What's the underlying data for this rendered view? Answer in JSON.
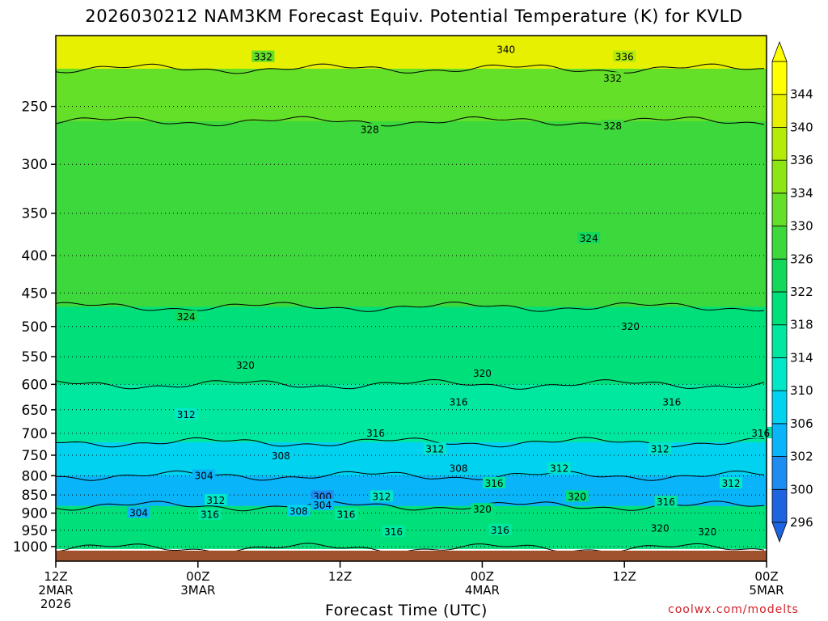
{
  "chart_data": {
    "type": "heatmap",
    "title": "2026030212 NAM3KM Forecast Equiv. Potential Temperature (K) for KVLD",
    "xlabel": "Forecast Time (UTC)",
    "ylabel": "",
    "y_scale": "log-pressure",
    "y_reversed": true,
    "y_ticks": [
      250,
      300,
      350,
      400,
      450,
      500,
      550,
      600,
      650,
      700,
      750,
      800,
      850,
      900,
      950,
      1000
    ],
    "ylim": [
      1013,
      200
    ],
    "x_ticks": [
      {
        "hours": 0,
        "lines": [
          "12Z",
          "2MAR",
          "2026"
        ]
      },
      {
        "hours": 12,
        "lines": [
          "00Z",
          "3MAR"
        ]
      },
      {
        "hours": 24,
        "lines": [
          "12Z"
        ]
      },
      {
        "hours": 36,
        "lines": [
          "00Z",
          "4MAR"
        ]
      },
      {
        "hours": 48,
        "lines": [
          "12Z"
        ]
      },
      {
        "hours": 60,
        "lines": [
          "00Z",
          "5MAR"
        ]
      }
    ],
    "xlim": [
      0,
      60
    ],
    "colorbar": {
      "levels": [
        296,
        300,
        302,
        306,
        310,
        314,
        318,
        322,
        326,
        330,
        334,
        336,
        340,
        344
      ],
      "labels": [
        "296",
        "300",
        "302",
        "306",
        "310",
        "314",
        "318",
        "322",
        "326",
        "330",
        "334",
        "336",
        "340",
        "344"
      ],
      "colors": [
        "#1e64e0",
        "#1e8cf0",
        "#0ab4f8",
        "#00d2f0",
        "#00e8c8",
        "#00e8a0",
        "#00e07a",
        "#14d85a",
        "#3cd83c",
        "#64e028",
        "#8ce614",
        "#b4ec0a",
        "#e6f000",
        "#ffff00"
      ]
    },
    "contour_interval": 4,
    "contour_levels_labeled": [
      {
        "value": 340,
        "text": "340",
        "hours": 38.0,
        "p": 209
      },
      {
        "value": 336,
        "text": "336",
        "hours": 48.0,
        "p": 214
      },
      {
        "value": 332,
        "text": "332",
        "hours": 17.5,
        "p": 214
      },
      {
        "value": 332,
        "text": "332",
        "hours": 47.0,
        "p": 229
      },
      {
        "value": 328,
        "text": "328",
        "hours": 26.5,
        "p": 269
      },
      {
        "value": 328,
        "text": "328",
        "hours": 47.0,
        "p": 266
      },
      {
        "value": 324,
        "text": "324",
        "hours": 45.0,
        "p": 379
      },
      {
        "value": 324,
        "text": "324",
        "hours": 11.0,
        "p": 485
      },
      {
        "value": 320,
        "text": "320",
        "hours": 48.5,
        "p": 500
      },
      {
        "value": 320,
        "text": "320",
        "hours": 16.0,
        "p": 565
      },
      {
        "value": 320,
        "text": "320",
        "hours": 36.0,
        "p": 580
      },
      {
        "value": 316,
        "text": "316",
        "hours": 34.0,
        "p": 635
      },
      {
        "value": 316,
        "text": "316",
        "hours": 52.0,
        "p": 635
      },
      {
        "value": 312,
        "text": "312",
        "hours": 11.0,
        "p": 660
      },
      {
        "value": 316,
        "text": "316",
        "hours": 27.0,
        "p": 700
      },
      {
        "value": 316,
        "text": "316",
        "hours": 59.5,
        "p": 700
      },
      {
        "value": 312,
        "text": "312",
        "hours": 32.0,
        "p": 736
      },
      {
        "value": 308,
        "text": "308",
        "hours": 19.0,
        "p": 752
      },
      {
        "value": 312,
        "text": "312",
        "hours": 51.0,
        "p": 736
      },
      {
        "value": 304,
        "text": "304",
        "hours": 12.5,
        "p": 800
      },
      {
        "value": 308,
        "text": "308",
        "hours": 34.0,
        "p": 782
      },
      {
        "value": 312,
        "text": "312",
        "hours": 42.5,
        "p": 782
      },
      {
        "value": 316,
        "text": "316",
        "hours": 37.0,
        "p": 820
      },
      {
        "value": 300,
        "text": "300",
        "hours": 22.5,
        "p": 855
      },
      {
        "value": 312,
        "text": "312",
        "hours": 27.5,
        "p": 855
      },
      {
        "value": 312,
        "text": "312",
        "hours": 13.5,
        "p": 865
      },
      {
        "value": 320,
        "text": "320",
        "hours": 44.0,
        "p": 855
      },
      {
        "value": 312,
        "text": "312",
        "hours": 57.0,
        "p": 820
      },
      {
        "value": 316,
        "text": "316",
        "hours": 51.5,
        "p": 870
      },
      {
        "value": 304,
        "text": "304",
        "hours": 22.5,
        "p": 878
      },
      {
        "value": 308,
        "text": "308",
        "hours": 20.5,
        "p": 895
      },
      {
        "value": 304,
        "text": "304",
        "hours": 7.0,
        "p": 900
      },
      {
        "value": 316,
        "text": "316",
        "hours": 13.0,
        "p": 905
      },
      {
        "value": 316,
        "text": "316",
        "hours": 24.5,
        "p": 905
      },
      {
        "value": 320,
        "text": "320",
        "hours": 36.0,
        "p": 890
      },
      {
        "value": 316,
        "text": "316",
        "hours": 28.5,
        "p": 955
      },
      {
        "value": 316,
        "text": "316",
        "hours": 37.5,
        "p": 950
      },
      {
        "value": 320,
        "text": "320",
        "hours": 51.0,
        "p": 945
      },
      {
        "value": 320,
        "text": "320",
        "hours": 55.0,
        "p": 955
      }
    ],
    "bands": [
      {
        "label": "upper yellow",
        "theta_e": 340,
        "p_top": 200,
        "p_bottom": 222
      },
      {
        "label": "upper light green",
        "theta_e": 332,
        "p_top": 222,
        "p_bottom": 262
      },
      {
        "label": "mid green",
        "theta_e": 326,
        "p_top": 262,
        "p_bottom": 470
      },
      {
        "label": "mid-lower green",
        "theta_e": 321,
        "p_top": 470,
        "p_bottom": 600
      },
      {
        "label": "cyan",
        "theta_e": 314,
        "p_top": 600,
        "p_bottom": 720
      },
      {
        "label": "light blue",
        "theta_e": 308,
        "p_top": 720,
        "p_bottom": 800
      },
      {
        "label": "blue (cool pool)",
        "theta_e": 302,
        "p_top": 800,
        "p_bottom": 880
      },
      {
        "label": "low-level green",
        "theta_e": 318,
        "p_top": 880,
        "p_bottom": 1005
      }
    ],
    "ground_color": "#a0522d"
  },
  "credit": "coolwx.com/modelts"
}
